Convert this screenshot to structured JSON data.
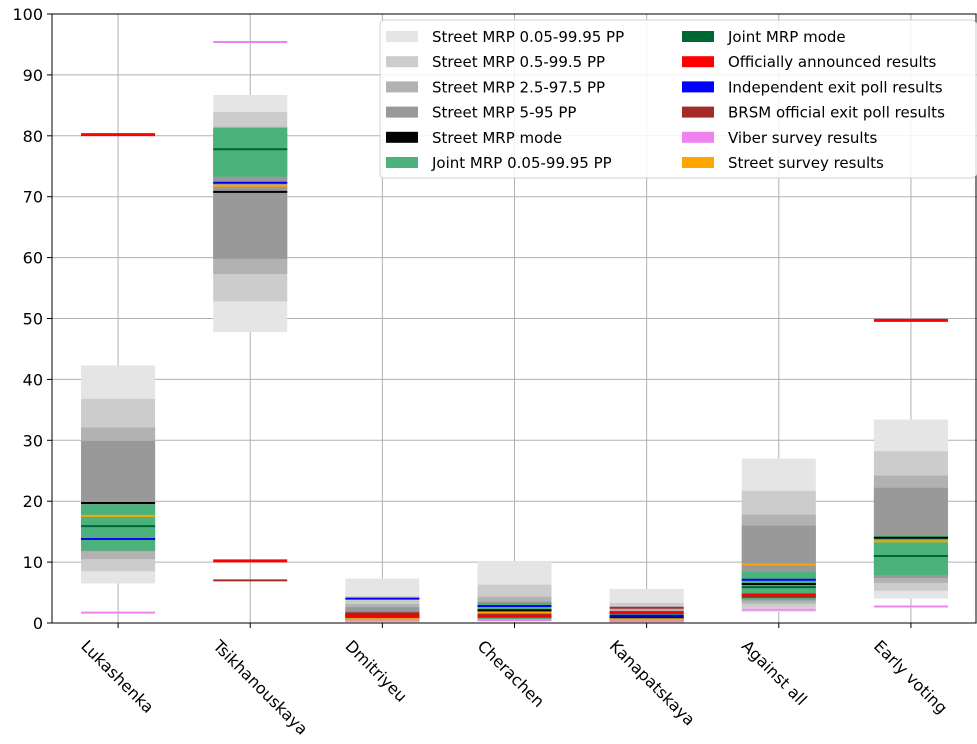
{
  "chart_data": {
    "type": "bar",
    "title": "",
    "xlabel": "",
    "ylabel": "",
    "ylim": [
      0,
      100
    ],
    "yticks": [
      0,
      10,
      20,
      30,
      40,
      50,
      60,
      70,
      80,
      90,
      100
    ],
    "grid": true,
    "legend_position": "top-right",
    "categories": [
      "Lukashenka",
      "Tsikhanouskaya",
      "Dmitriyeu",
      "Cherachen",
      "Kanapatskaya",
      "Against all",
      "Early voting"
    ],
    "interval_series": [
      {
        "name": "Street MRP 0.05-99.95 PP",
        "color": "#e5e5e5",
        "ranges": [
          [
            6.5,
            42.3
          ],
          [
            47.8,
            86.7
          ],
          [
            0.1,
            7.3
          ],
          [
            0.2,
            10.2
          ],
          [
            0.1,
            5.6
          ],
          [
            1.8,
            27.0
          ],
          [
            4.0,
            33.4
          ]
        ]
      },
      {
        "name": "Street MRP 0.5-99.5 PP",
        "color": "#cccccc",
        "ranges": [
          [
            8.5,
            36.8
          ],
          [
            52.8,
            83.9
          ],
          [
            0.2,
            4.4
          ],
          [
            0.4,
            6.3
          ],
          [
            0.2,
            3.3
          ],
          [
            2.5,
            21.7
          ],
          [
            5.3,
            28.2
          ]
        ]
      },
      {
        "name": "Street MRP 2.5-97.5 PP",
        "color": "#b2b2b2",
        "ranges": [
          [
            10.5,
            32.1
          ],
          [
            57.3,
            81.5
          ],
          [
            0.3,
            3.1
          ],
          [
            0.6,
            4.3
          ],
          [
            0.3,
            2.4
          ],
          [
            3.2,
            17.8
          ],
          [
            6.6,
            24.2
          ]
        ]
      },
      {
        "name": "Street MRP 5-95 PP",
        "color": "#999999",
        "ranges": [
          [
            11.8,
            29.9
          ],
          [
            59.8,
            80.2
          ],
          [
            0.4,
            2.6
          ],
          [
            0.7,
            3.5
          ],
          [
            0.4,
            2.0
          ],
          [
            3.7,
            16.0
          ],
          [
            7.4,
            22.2
          ]
        ]
      },
      {
        "name": "Joint MRP 0.05-99.95 PP",
        "color": "#4ab27a",
        "ranges": [
          [
            11.9,
            19.5
          ],
          [
            73.3,
            81.3
          ],
          [
            0.5,
            1.9
          ],
          [
            0.6,
            3.3
          ],
          [
            0.2,
            1.6
          ],
          [
            3.9,
            8.4
          ],
          [
            7.9,
            14.3
          ]
        ]
      }
    ],
    "point_series": [
      {
        "name": "Street MRP mode",
        "color": "#000000",
        "values": [
          19.7,
          70.8,
          1.3,
          2.1,
          0.9,
          6.4,
          14.0
        ]
      },
      {
        "name": "Joint MRP mode",
        "color": "#006633",
        "values": [
          15.9,
          77.8,
          1.0,
          1.8,
          0.7,
          5.9,
          11.0
        ]
      },
      {
        "name": "Officially announced results",
        "color": "#ff0000",
        "values": [
          80.2,
          10.2,
          1.2,
          1.1,
          1.7,
          4.6,
          49.7
        ]
      },
      {
        "name": "Independent exit poll results",
        "color": "#0000ff",
        "values": [
          13.8,
          72.3,
          4.0,
          2.8,
          1.2,
          7.1,
          null
        ]
      },
      {
        "name": "BRSM official exit poll results",
        "color": "#a52a2a",
        "values": [
          null,
          7.0,
          1.6,
          1.4,
          2.5,
          4.3,
          null
        ]
      },
      {
        "name": "Viber survey results",
        "color": "#ee82ee",
        "values": [
          1.7,
          95.4,
          0.4,
          0.5,
          0.3,
          2.2,
          2.7
        ]
      },
      {
        "name": "Street survey results",
        "color": "#ffa500",
        "values": [
          17.6,
          71.8,
          0.6,
          1.7,
          0.6,
          9.6,
          13.4
        ]
      }
    ],
    "legend": [
      [
        "Street MRP 0.05-99.95 PP",
        "Street MRP 0.5-99.5 PP",
        "Street MRP 2.5-97.5 PP",
        "Street MRP 5-95 PP",
        "Street MRP mode",
        "Joint MRP 0.05-99.95 PP"
      ],
      [
        "Joint MRP mode",
        "Officially announced results",
        "Independent exit poll results",
        "BRSM official exit poll results",
        "Viber survey results",
        "Street survey results"
      ]
    ],
    "legend_colors": [
      [
        "#e5e5e5",
        "#cccccc",
        "#b2b2b2",
        "#999999",
        "#000000",
        "#4ab27a"
      ],
      [
        "#006633",
        "#ff0000",
        "#0000ff",
        "#a52a2a",
        "#ee82ee",
        "#ffa500"
      ]
    ]
  }
}
